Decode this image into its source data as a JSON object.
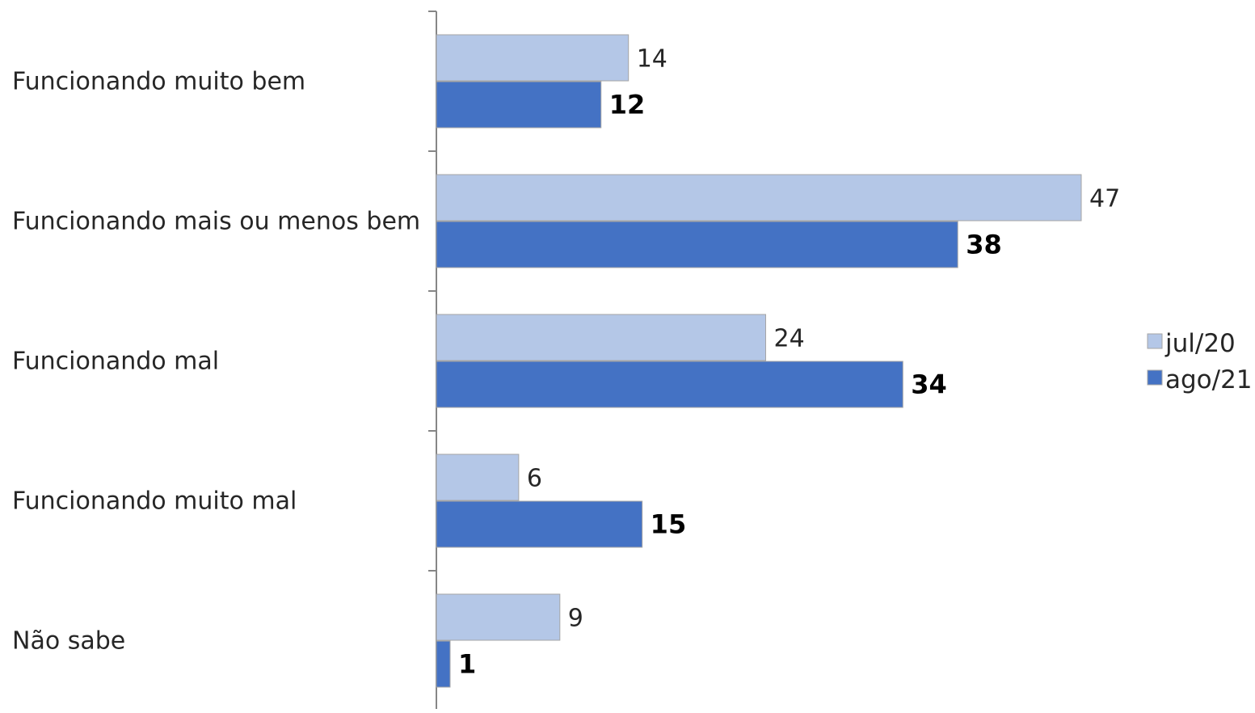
{
  "chart_data": {
    "type": "bar",
    "orientation": "horizontal",
    "categories": [
      "Funcionando muito bem",
      "Funcionando mais ou menos bem",
      "Funcionando mal",
      "Funcionando muito mal",
      "Não sabe"
    ],
    "series": [
      {
        "name": "jul/20",
        "values": [
          14,
          47,
          24,
          6,
          9
        ],
        "color": "#b4c7e7",
        "label_style": "normal"
      },
      {
        "name": "ago/21",
        "values": [
          12,
          38,
          34,
          15,
          1
        ],
        "color": "#4472c4",
        "label_style": "bold"
      }
    ],
    "title": "",
    "xlabel": "",
    "ylabel": "",
    "xlim": [
      0,
      50
    ],
    "grid": false,
    "legend_position": "right"
  }
}
